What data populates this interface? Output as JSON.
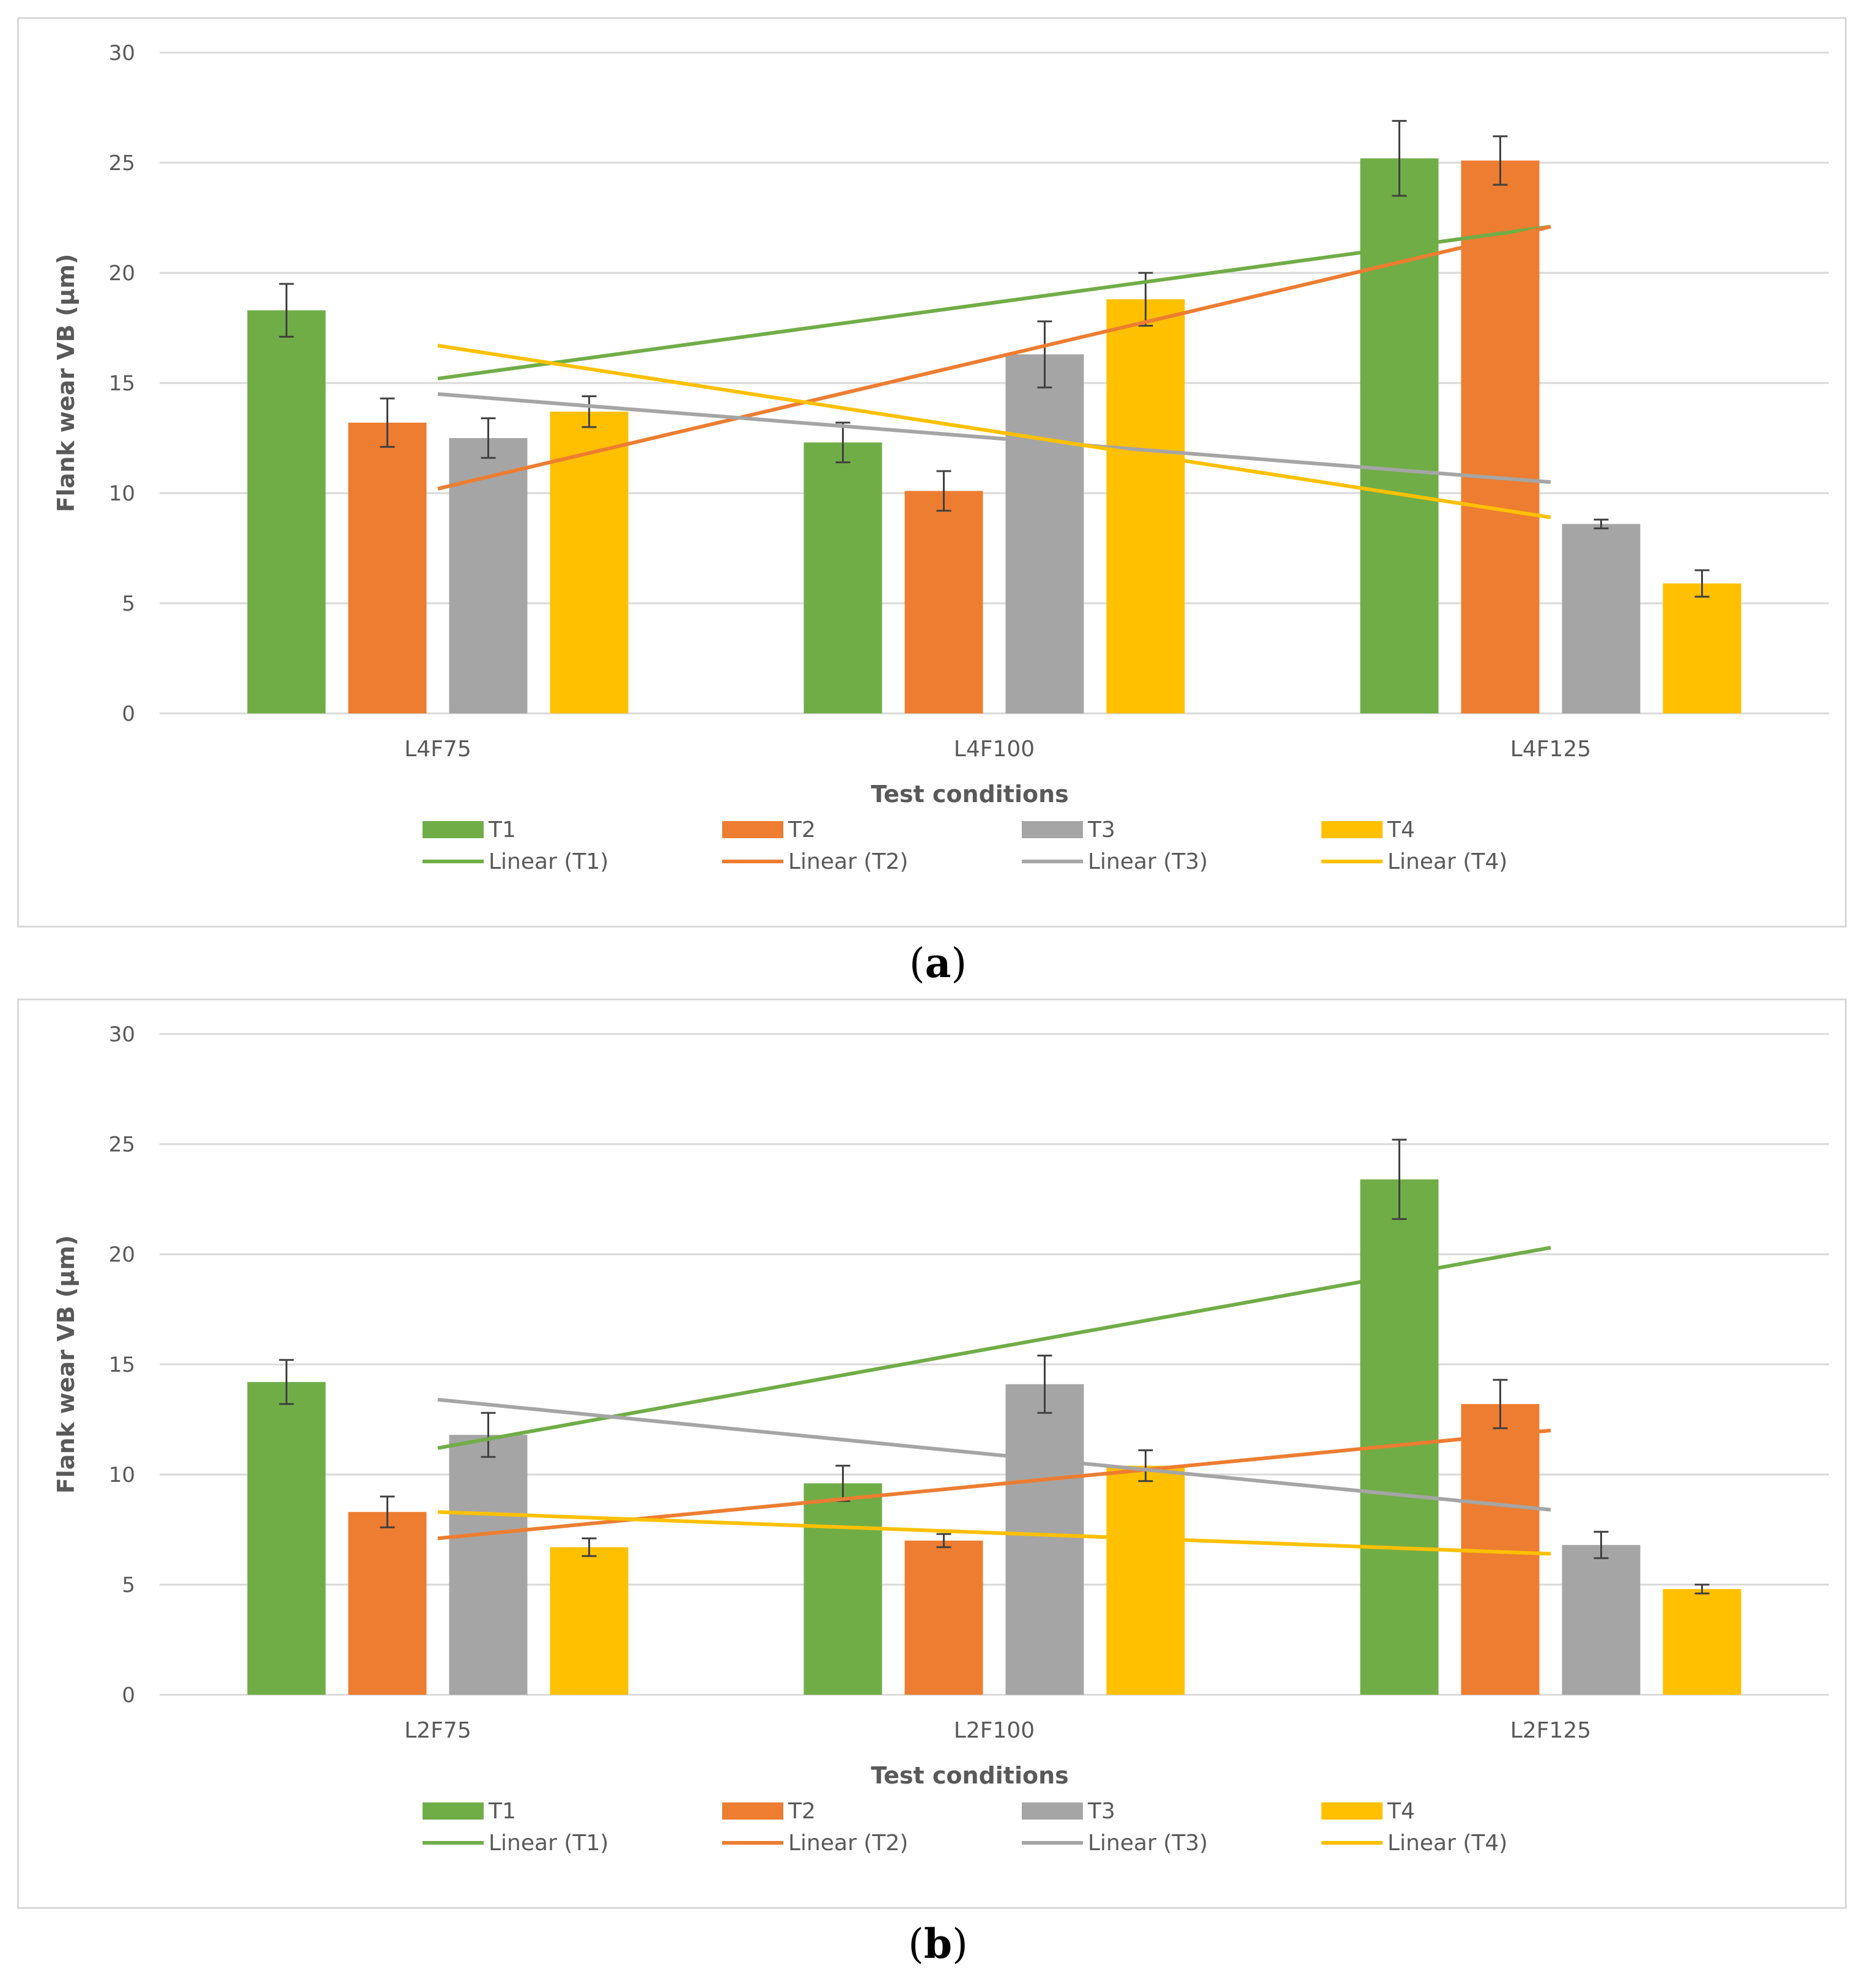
{
  "chart_data": [
    {
      "type": "bar",
      "panel": "a",
      "caption": "a",
      "categories": [
        "L4F75",
        "L4F100",
        "L4F125"
      ],
      "xlabel": "Test conditions",
      "ylabel": "Flank wear VB (μm)",
      "ylim": [
        0,
        30
      ],
      "yticks": [
        "0",
        "5",
        "10",
        "15",
        "20",
        "25",
        "30"
      ],
      "grid": true,
      "legend_position": "bottom",
      "series": [
        {
          "name": "T1",
          "color": "#70ad47",
          "values": [
            18.3,
            12.3,
            25.2
          ],
          "errors": [
            1.2,
            0.9,
            1.7
          ]
        },
        {
          "name": "T2",
          "color": "#ed7d31",
          "values": [
            13.2,
            10.1,
            25.1
          ],
          "errors": [
            1.1,
            0.9,
            1.1
          ]
        },
        {
          "name": "T3",
          "color": "#a5a5a5",
          "values": [
            12.5,
            16.3,
            8.6
          ],
          "errors": [
            0.9,
            1.5,
            0.2
          ]
        },
        {
          "name": "T4",
          "color": "#ffc000",
          "values": [
            13.7,
            18.8,
            5.9
          ],
          "errors": [
            0.7,
            1.2,
            0.6
          ]
        }
      ],
      "trendlines": [
        {
          "name": "Linear (T1)",
          "color": "#70ad47",
          "start": 15.2,
          "end": 22.1
        },
        {
          "name": "Linear (T2)",
          "color": "#ed7d31",
          "start": 10.2,
          "end": 22.1
        },
        {
          "name": "Linear (T3)",
          "color": "#a5a5a5",
          "start": 14.5,
          "end": 10.5
        },
        {
          "name": "Linear (T4)",
          "color": "#ffc000",
          "start": 16.7,
          "end": 8.9
        }
      ]
    },
    {
      "type": "bar",
      "panel": "b",
      "caption": "b",
      "categories": [
        "L2F75",
        "L2F100",
        "L2F125"
      ],
      "xlabel": "Test conditions",
      "ylabel": "Flank wear VB (μm)",
      "ylim": [
        0,
        30
      ],
      "yticks": [
        "0",
        "5",
        "10",
        "15",
        "20",
        "25",
        "30"
      ],
      "grid": true,
      "legend_position": "bottom",
      "series": [
        {
          "name": "T1",
          "color": "#70ad47",
          "values": [
            14.2,
            9.6,
            23.4
          ],
          "errors": [
            1.0,
            0.8,
            1.8
          ]
        },
        {
          "name": "T2",
          "color": "#ed7d31",
          "values": [
            8.3,
            7.0,
            13.2
          ],
          "errors": [
            0.7,
            0.3,
            1.1
          ]
        },
        {
          "name": "T3",
          "color": "#a5a5a5",
          "values": [
            11.8,
            14.1,
            6.8
          ],
          "errors": [
            1.0,
            1.3,
            0.6
          ]
        },
        {
          "name": "T4",
          "color": "#ffc000",
          "values": [
            6.7,
            10.4,
            4.8
          ],
          "errors": [
            0.4,
            0.7,
            0.2
          ]
        }
      ],
      "trendlines": [
        {
          "name": "Linear (T1)",
          "color": "#70ad47",
          "start": 11.2,
          "end": 20.3
        },
        {
          "name": "Linear (T2)",
          "color": "#ed7d31",
          "start": 7.1,
          "end": 12.0
        },
        {
          "name": "Linear (T3)",
          "color": "#a5a5a5",
          "start": 13.4,
          "end": 8.4
        },
        {
          "name": "Linear (T4)",
          "color": "#ffc000",
          "start": 8.3,
          "end": 6.4
        }
      ]
    }
  ]
}
